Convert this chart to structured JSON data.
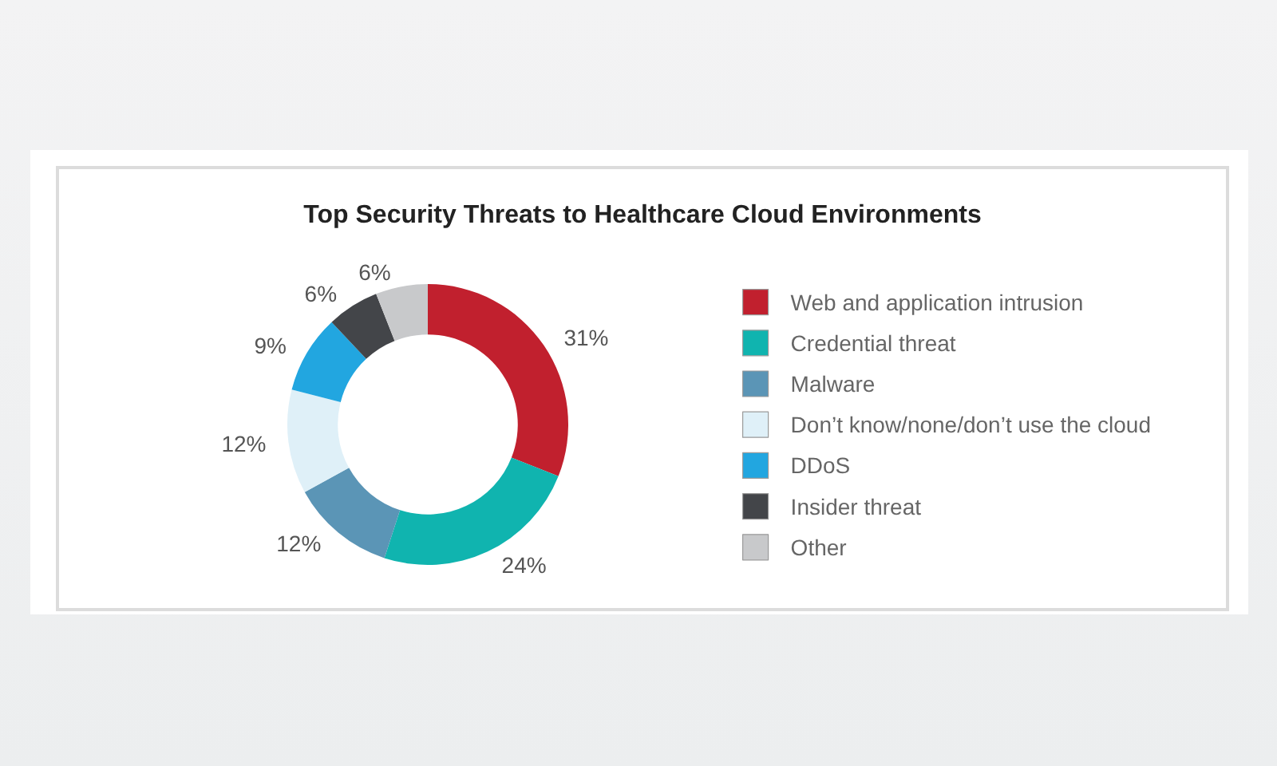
{
  "chart_data": {
    "type": "donut",
    "title": "Top Security Threats to Healthcare Cloud Environments",
    "categories": [
      "Web and application intrusion",
      "Credential threat",
      "Malware",
      "Don’t know/none/don’t use the cloud",
      "DDoS",
      "Insider threat",
      "Other"
    ],
    "values": [
      31,
      24,
      12,
      12,
      9,
      6,
      6
    ],
    "colors": [
      "#c1202e",
      "#10b4af",
      "#5b95b6",
      "#dff0f8",
      "#22a6e0",
      "#434549",
      "#c8c9cb"
    ],
    "value_labels": [
      "31%",
      "24%",
      "12%",
      "12%",
      "9%",
      "6%",
      "6%"
    ],
    "legend": "right"
  }
}
